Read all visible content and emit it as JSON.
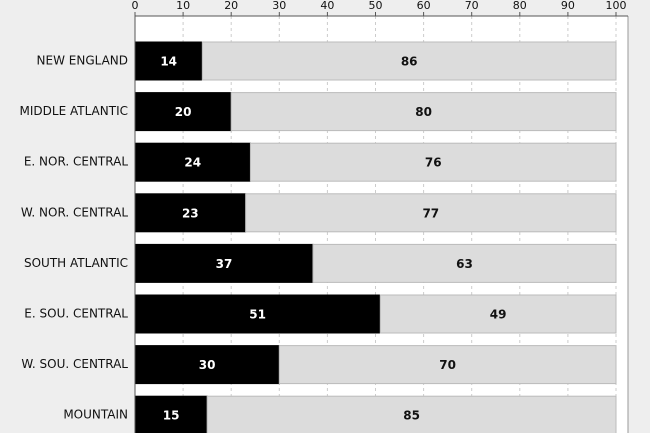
{
  "chart_data": {
    "type": "stacked-barh",
    "categories": [
      "NEW ENGLAND",
      "MIDDLE ATLANTIC",
      "E. NOR. CENTRAL",
      "W. NOR. CENTRAL",
      "SOUTH ATLANTIC",
      "E. SOU. CENTRAL",
      "W. SOU. CENTRAL",
      "MOUNTAIN"
    ],
    "series": [
      {
        "color": "#000000",
        "values": [
          14,
          20,
          24,
          23,
          37,
          51,
          30,
          15
        ]
      },
      {
        "color": "#dcdcdc",
        "values": [
          86,
          80,
          76,
          77,
          63,
          49,
          70,
          85
        ]
      }
    ],
    "xlim": [
      0,
      100
    ],
    "xticks": [
      0,
      10,
      20,
      30,
      40,
      50,
      60,
      70,
      80,
      90,
      100
    ],
    "grid": true
  }
}
